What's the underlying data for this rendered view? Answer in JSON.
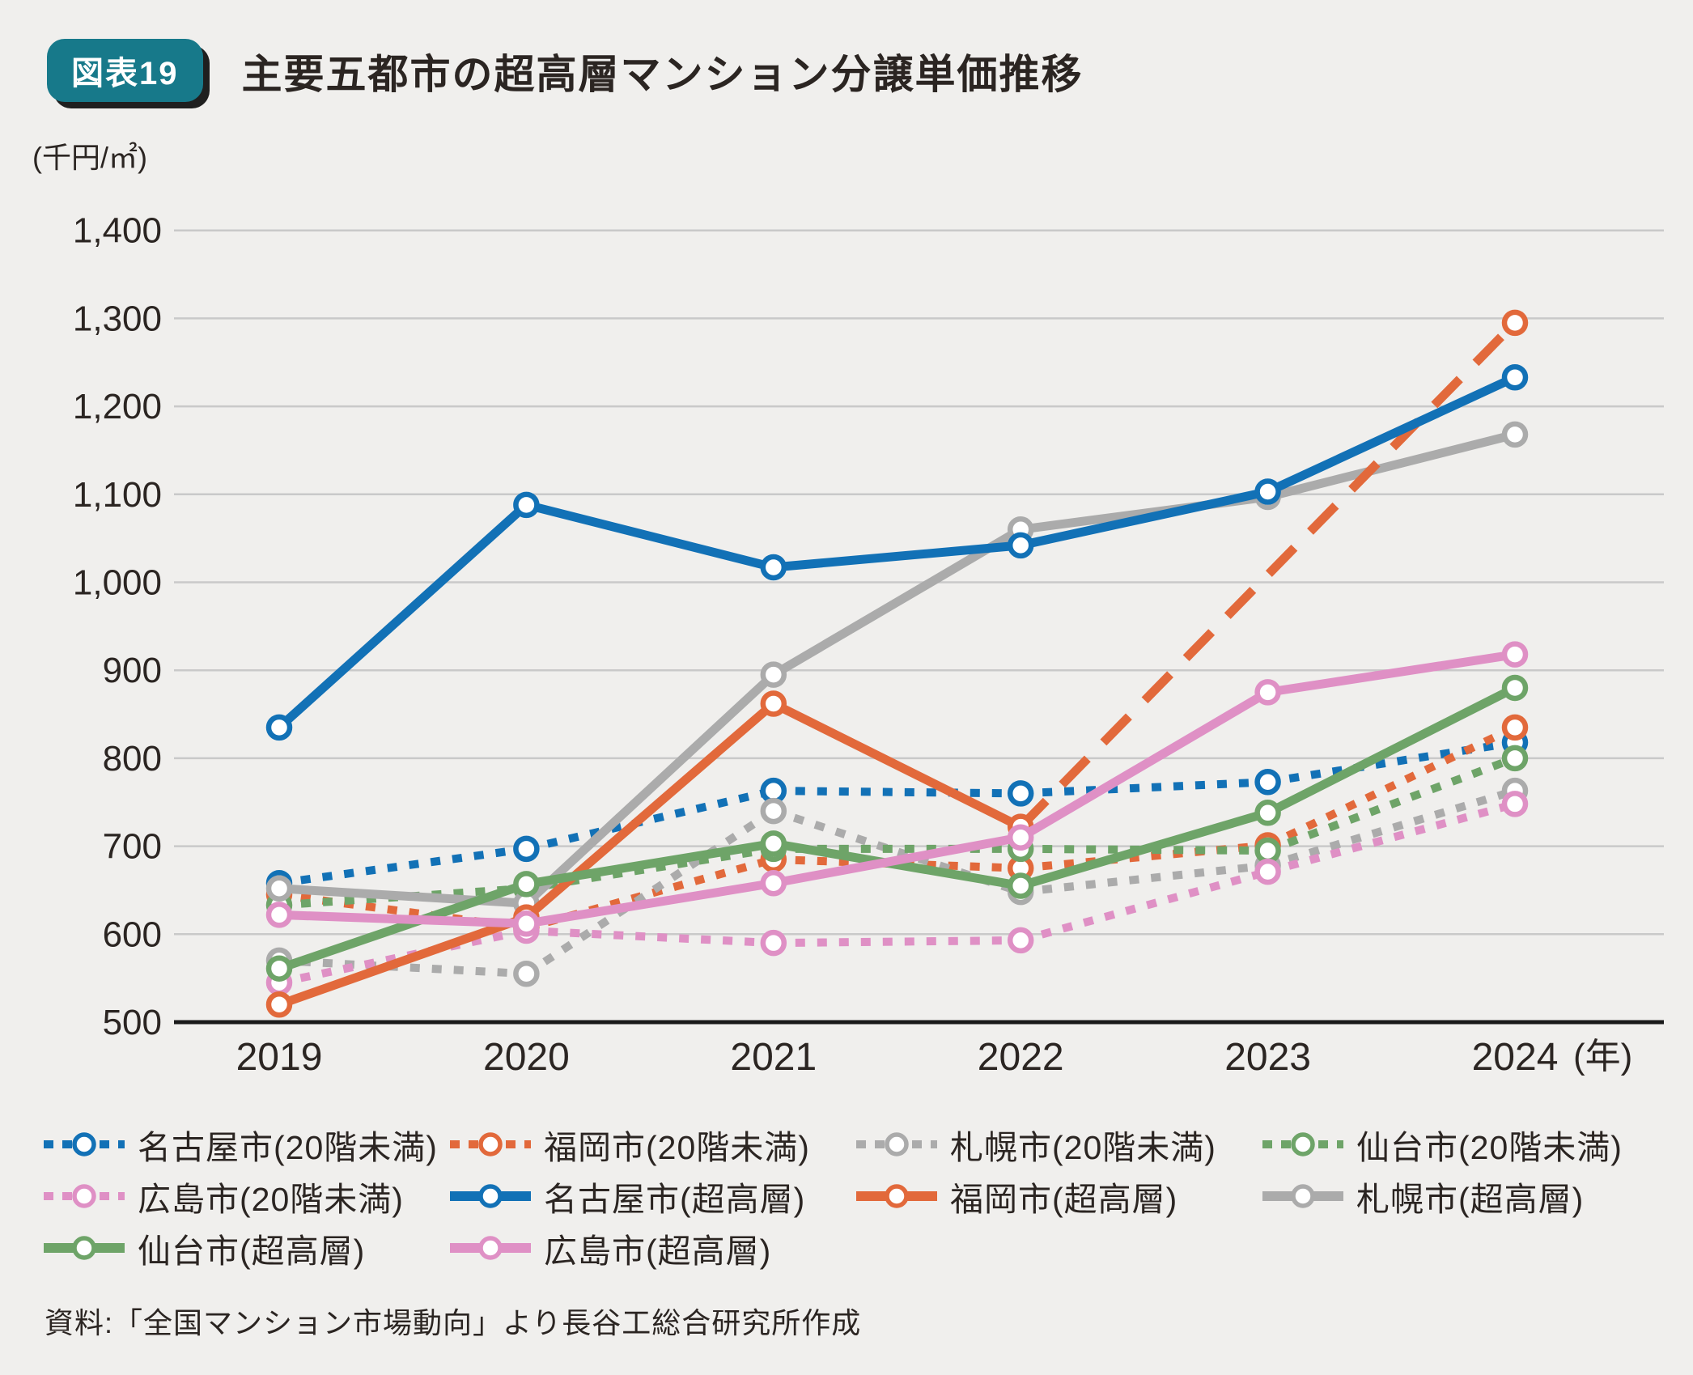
{
  "figure": {
    "badge": "図表19",
    "title": "主要五都市の超高層マンション分譲単価推移"
  },
  "source": "資料:「全国マンション市場動向」より長谷工総合研究所作成",
  "colors": {
    "background": "#f0efed",
    "text": "#2b2522",
    "grid": "#c9c9c9",
    "axis": "#1a1a1a",
    "badge_bg": "#17798a",
    "badge_shadow": "#1f1f1f",
    "blue": "#1271b6",
    "orange": "#e2693b",
    "gray": "#ababab",
    "green": "#6ea468",
    "pink": "#df90c5"
  },
  "chart_data": {
    "type": "line",
    "title": "主要五都市の超高層マンション分譲単価推移",
    "unit_label": "(千円/㎡)",
    "x_unit_label": "(年)",
    "x": [
      2019,
      2020,
      2021,
      2022,
      2023,
      2024
    ],
    "ylim": [
      500,
      1400
    ],
    "ytick_step": 100,
    "grid": true,
    "legend_position": "bottom",
    "series": [
      {
        "name": "名古屋市(20階未満)",
        "color": "#1271b6",
        "style": "dashed",
        "z": 1,
        "values": [
          658,
          697,
          763,
          760,
          773,
          818
        ]
      },
      {
        "name": "福岡市(20階未満)",
        "color": "#e2693b",
        "style": "dashed",
        "z": 2,
        "values": [
          645,
          607,
          685,
          675,
          701,
          835
        ]
      },
      {
        "name": "札幌市(20階未満)",
        "color": "#ababab",
        "style": "dashed",
        "z": 3,
        "values": [
          570,
          555,
          740,
          648,
          678,
          763
        ]
      },
      {
        "name": "仙台市(20階未満)",
        "color": "#6ea468",
        "style": "dashed",
        "z": 4,
        "values": [
          633,
          652,
          697,
          697,
          695,
          800
        ]
      },
      {
        "name": "広島市(20階未満)",
        "color": "#df90c5",
        "style": "dashed",
        "z": 5,
        "values": [
          545,
          604,
          590,
          593,
          671,
          748
        ]
      },
      {
        "name": "名古屋市(超高層)",
        "color": "#1271b6",
        "style": "solid",
        "z": 8,
        "values": [
          835,
          1088,
          1017,
          1042,
          1103,
          1233
        ]
      },
      {
        "name": "福岡市(超高層)",
        "color": "#e2693b",
        "style": "solid",
        "z": 7,
        "values": [
          520,
          619,
          862,
          722,
          null,
          1295
        ]
      },
      {
        "name": "札幌市(超高層)",
        "color": "#ababab",
        "style": "solid",
        "z": 6,
        "values": [
          652,
          635,
          895,
          1060,
          1097,
          1168
        ]
      },
      {
        "name": "仙台市(超高層)",
        "color": "#6ea468",
        "style": "solid",
        "z": 9,
        "values": [
          561,
          657,
          703,
          655,
          738,
          880
        ]
      },
      {
        "name": "広島市(超高層)",
        "color": "#df90c5",
        "style": "solid",
        "z": 10,
        "values": [
          622,
          612,
          658,
          710,
          875,
          918
        ]
      }
    ]
  }
}
